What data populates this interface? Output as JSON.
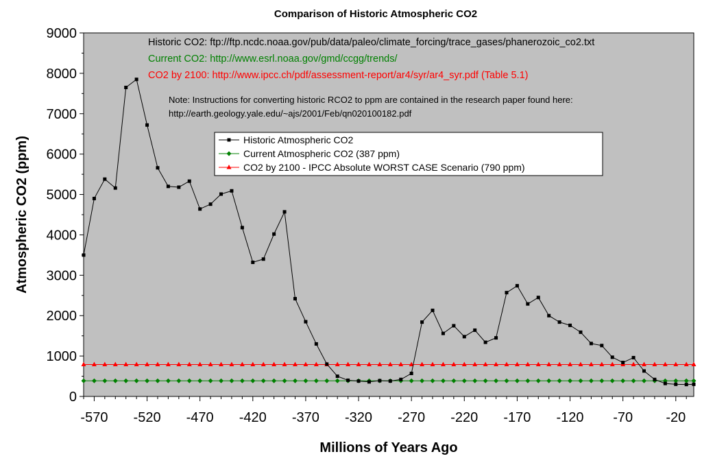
{
  "chart_data": {
    "type": "line",
    "title": "Comparison of Historic Atmospheric CO2",
    "xlabel": "Millions of Years Ago",
    "ylabel": "Atmospheric CO2 (ppm)",
    "xlim": [
      -580,
      -3
    ],
    "ylim": [
      0,
      9000
    ],
    "x_ticks": [
      -570,
      -520,
      -470,
      -420,
      -370,
      -320,
      -270,
      -220,
      -170,
      -120,
      -70,
      -20
    ],
    "y_ticks": [
      0,
      1000,
      2000,
      3000,
      4000,
      5000,
      6000,
      7000,
      8000,
      9000
    ],
    "grid": false,
    "plot_background": "#c0c0c0",
    "legend_position": "center-top",
    "sources": [
      {
        "text": "Historic CO2: ftp://ftp.ncdc.noaa.gov/pub/data/paleo/climate_forcing/trace_gases/phanerozoic_co2.txt",
        "color": "#000000"
      },
      {
        "text": "Current CO2: http://www.esrl.noaa.gov/gmd/ccgg/trends/",
        "color": "#008000"
      },
      {
        "text": "CO2 by 2100: http://www.ipcc.ch/pdf/assessment-report/ar4/syr/ar4_syr.pdf (Table 5.1)",
        "color": "#ff0000"
      }
    ],
    "note": [
      "Note: Instructions for converting historic RCO2 to ppm are contained in the research paper found here:",
      "http://earth.geology.yale.edu/~ajs/2001/Feb/qn020100182.pdf"
    ],
    "series": [
      {
        "name": "Historic Atmospheric CO2",
        "color": "#000000",
        "marker": "square",
        "x": [
          -580,
          -570,
          -560,
          -550,
          -540,
          -530,
          -520,
          -510,
          -500,
          -490,
          -480,
          -470,
          -460,
          -450,
          -440,
          -430,
          -420,
          -410,
          -400,
          -390,
          -380,
          -370,
          -360,
          -350,
          -340,
          -330,
          -320,
          -310,
          -300,
          -290,
          -280,
          -270,
          -260,
          -250,
          -240,
          -230,
          -220,
          -210,
          -200,
          -190,
          -180,
          -170,
          -160,
          -150,
          -140,
          -130,
          -120,
          -110,
          -100,
          -90,
          -80,
          -70,
          -60,
          -50,
          -40,
          -30,
          -20,
          -10,
          -3
        ],
        "y": [
          3500,
          4900,
          5380,
          5160,
          7650,
          7850,
          6720,
          5660,
          5200,
          5180,
          5330,
          4640,
          4760,
          5010,
          5090,
          4180,
          3320,
          3400,
          4020,
          4570,
          2420,
          1850,
          1300,
          800,
          500,
          400,
          380,
          360,
          390,
          380,
          420,
          570,
          1840,
          2130,
          1560,
          1750,
          1480,
          1640,
          1340,
          1450,
          2570,
          2740,
          2290,
          2450,
          2000,
          1840,
          1760,
          1590,
          1310,
          1260,
          970,
          840,
          960,
          630,
          420,
          320,
          300,
          295,
          300
        ]
      },
      {
        "name": "Current Atmospheric CO2 (387 ppm)",
        "color": "#008000",
        "marker": "diamond",
        "constant": 387
      },
      {
        "name": "CO2 by 2100 - IPCC Absolute WORST CASE Scenario (790 ppm)",
        "color": "#ff0000",
        "marker": "triangle",
        "constant": 790
      }
    ]
  }
}
